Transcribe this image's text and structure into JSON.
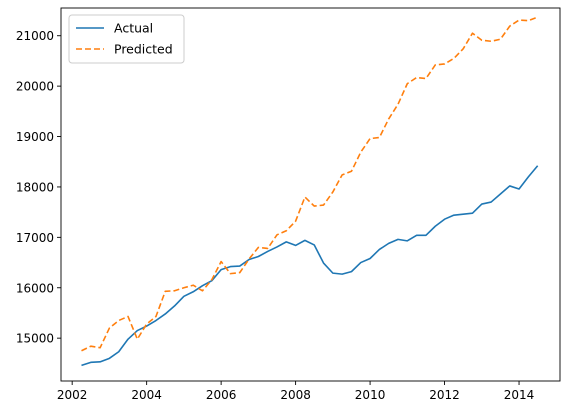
{
  "chart_data": {
    "type": "line",
    "title": "",
    "xlabel": "",
    "ylabel": "",
    "xlim": [
      2001.7,
      2015.1
    ],
    "ylim": [
      14150,
      21550
    ],
    "grid": false,
    "legend_position": "top-left",
    "x_ticks": [
      2002,
      2004,
      2006,
      2008,
      2010,
      2012,
      2014
    ],
    "y_ticks": [
      15000,
      16000,
      17000,
      18000,
      19000,
      20000,
      21000
    ],
    "x_tick_labels": [
      "2002",
      "2004",
      "2006",
      "2008",
      "2010",
      "2012",
      "2014"
    ],
    "y_tick_labels": [
      "15000",
      "16000",
      "17000",
      "18000",
      "19000",
      "20000",
      "21000"
    ],
    "x": [
      2002.25,
      2002.5,
      2002.75,
      2003.0,
      2003.25,
      2003.5,
      2003.75,
      2004.0,
      2004.25,
      2004.5,
      2004.75,
      2005.0,
      2005.25,
      2005.5,
      2005.75,
      2006.0,
      2006.25,
      2006.5,
      2006.75,
      2007.0,
      2007.25,
      2007.5,
      2007.75,
      2008.0,
      2008.25,
      2008.5,
      2008.75,
      2009.0,
      2009.25,
      2009.5,
      2009.75,
      2010.0,
      2010.25,
      2010.5,
      2010.75,
      2011.0,
      2011.25,
      2011.5,
      2011.75,
      2012.0,
      2012.25,
      2012.5,
      2012.75,
      2013.0,
      2013.25,
      2013.5,
      2013.75,
      2014.0,
      2014.25,
      2014.5
    ],
    "series": [
      {
        "name": "Actual",
        "color": "#1f77b4",
        "style": "solid",
        "values": [
          14460,
          14520,
          14530,
          14600,
          14730,
          14980,
          15150,
          15240,
          15350,
          15480,
          15640,
          15830,
          15920,
          16040,
          16140,
          16360,
          16420,
          16430,
          16560,
          16620,
          16720,
          16810,
          16910,
          16840,
          16940,
          16850,
          16490,
          16290,
          16270,
          16320,
          16500,
          16580,
          16760,
          16880,
          16960,
          16930,
          17040,
          17040,
          17220,
          17360,
          17440,
          17460,
          17480,
          17660,
          17700,
          17860,
          18020,
          17960,
          18200,
          18420
        ]
      },
      {
        "name": "Predicted",
        "color": "#ff7f0e",
        "style": "dashed",
        "values": [
          14750,
          14840,
          14810,
          15200,
          15350,
          15430,
          14980,
          15280,
          15430,
          15930,
          15940,
          16000,
          16050,
          15940,
          16160,
          16520,
          16280,
          16300,
          16570,
          16800,
          16780,
          17050,
          17130,
          17320,
          17800,
          17620,
          17640,
          17900,
          18240,
          18310,
          18690,
          18960,
          18980,
          19350,
          19640,
          20050,
          20170,
          20150,
          20420,
          20440,
          20550,
          20740,
          21050,
          20910,
          20890,
          20930,
          21190,
          21310,
          21300,
          21370
        ]
      }
    ]
  }
}
